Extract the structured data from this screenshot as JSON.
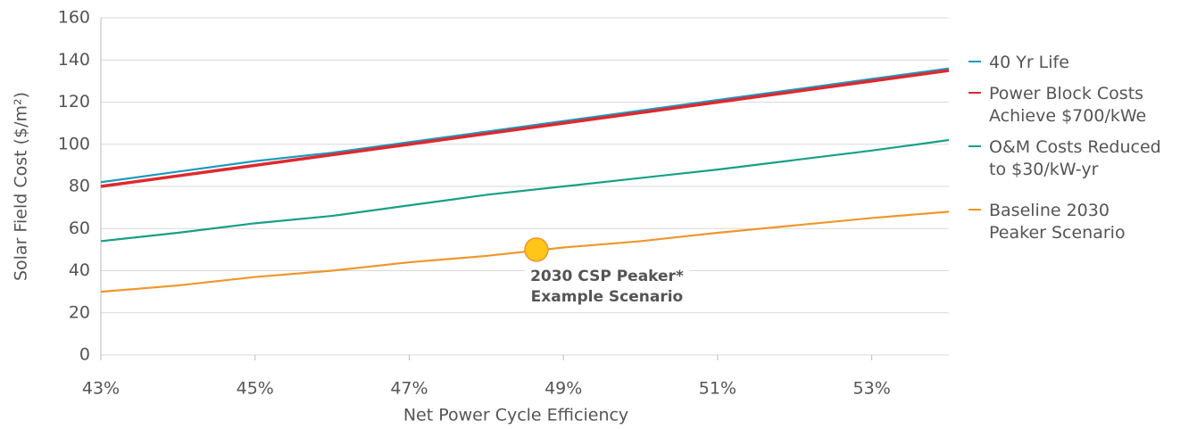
{
  "chart_data": {
    "type": "line",
    "x_label": "Net Power Cycle Efficiency",
    "y_label": "Solar Field Cost ($/m²)",
    "x": [
      43,
      44,
      45,
      46,
      47,
      48,
      49,
      50,
      51,
      52,
      53,
      54
    ],
    "series": [
      {
        "name": "40 Yr Life",
        "color": "#1a9bc0",
        "values": [
          82,
          87,
          92,
          96,
          101,
          106,
          111,
          116,
          121,
          126,
          131,
          136
        ]
      },
      {
        "name": "Power Block Costs\nAchieve $700/kWe",
        "color": "#e0282e",
        "values": [
          80,
          85,
          90,
          95,
          100,
          105,
          110,
          115,
          120,
          125,
          130,
          135
        ]
      },
      {
        "name": "O&M Costs Reduced\nto $30/kW-yr",
        "color": "#17a085",
        "values": [
          54,
          58,
          62.5,
          66,
          71,
          76,
          80,
          84,
          88,
          92.5,
          97,
          102
        ]
      },
      {
        "name": "Baseline 2030\nPeaker Scenario",
        "color": "#f0962a",
        "values": [
          30,
          33,
          37,
          40,
          44,
          47,
          51,
          54,
          58,
          61.5,
          65,
          68
        ]
      }
    ],
    "point": {
      "x": 48.65,
      "y": 50,
      "color": "#ffc619",
      "label": "2030 CSP Peaker*\nExample Scenario"
    },
    "xlim": [
      43,
      54
    ],
    "xticks": [
      {
        "value": 43,
        "label": "43%"
      },
      {
        "value": 45,
        "label": "45%"
      },
      {
        "value": 47,
        "label": "47%"
      },
      {
        "value": 49,
        "label": "49%"
      },
      {
        "value": 51,
        "label": "51%"
      },
      {
        "value": 53,
        "label": "53%"
      }
    ],
    "ylim": [
      0,
      160
    ],
    "yticks": [
      0,
      20,
      40,
      60,
      80,
      100,
      120,
      140,
      160
    ],
    "grid": true,
    "legend": "right"
  }
}
